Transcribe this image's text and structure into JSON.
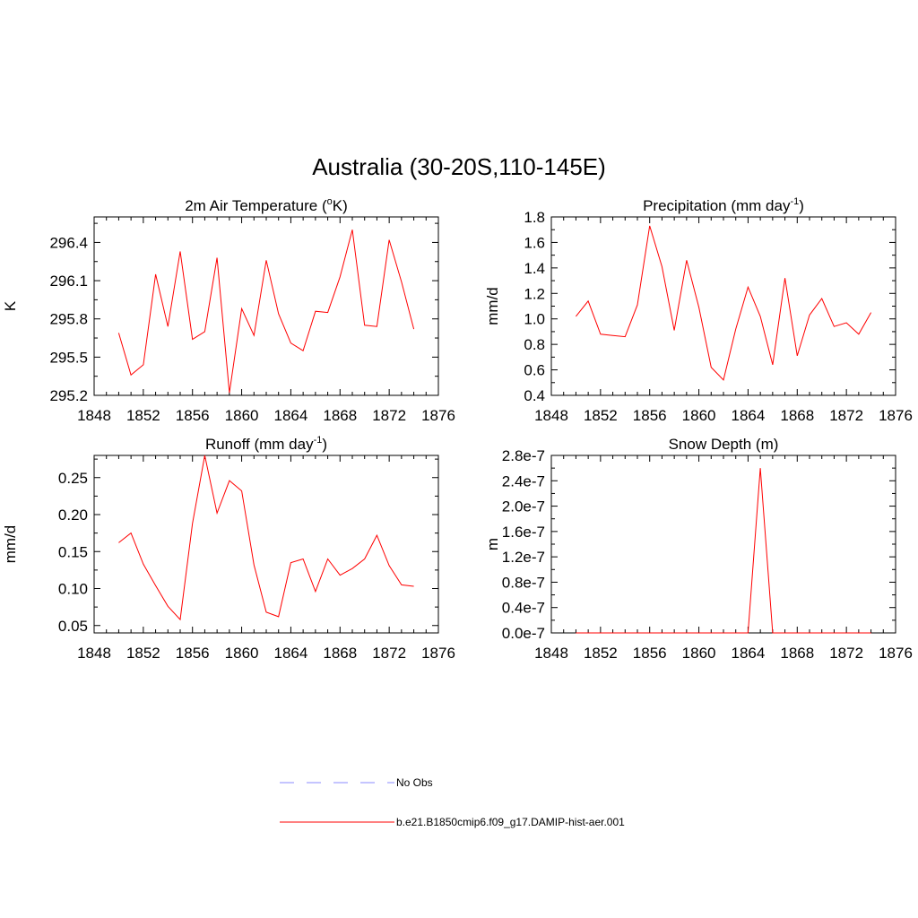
{
  "figure": {
    "title": "Australia (30-20S,110-145E)"
  },
  "legend": {
    "entries": [
      {
        "label": "No Obs",
        "color": "#8b8bff",
        "dash": true
      },
      {
        "label": "b.e21.B1850cmip6.f09_g17.DAMIP-hist-aer.001",
        "color": "#ff0000",
        "dash": false
      }
    ]
  },
  "chart_data": [
    {
      "type": "line",
      "title": "2m Air Temperature (",
      "title_sup": "o",
      "title_after": "K)",
      "ylabel": "K",
      "xlim": [
        1848,
        1876
      ],
      "ylim": [
        295.2,
        296.6
      ],
      "xticks": [
        1848,
        1852,
        1856,
        1860,
        1864,
        1868,
        1872,
        1876
      ],
      "xtick_labels": [
        "1848",
        "1852",
        "1856",
        "1860",
        "1864",
        "1868",
        "1872",
        "1876"
      ],
      "yticks": [
        295.2,
        295.5,
        295.8,
        296.1,
        296.4
      ],
      "ytick_labels": [
        "295.2",
        "295.5",
        "295.8",
        "296.1",
        "296.4"
      ],
      "series": [
        {
          "color": "#ff0000",
          "x": [
            1850,
            1851,
            1852,
            1853,
            1854,
            1855,
            1856,
            1857,
            1858,
            1859,
            1860,
            1861,
            1862,
            1863,
            1864,
            1865,
            1866,
            1867,
            1868,
            1869,
            1870,
            1871,
            1872,
            1873,
            1874
          ],
          "y": [
            295.69,
            295.36,
            295.44,
            296.15,
            295.74,
            296.33,
            295.64,
            295.7,
            296.28,
            295.22,
            295.88,
            295.67,
            296.26,
            295.84,
            295.61,
            295.55,
            295.86,
            295.85,
            296.13,
            296.5,
            295.75,
            295.74,
            296.42,
            296.09,
            295.72
          ]
        }
      ]
    },
    {
      "type": "line",
      "title": "Precipitation (mm day",
      "title_sup": "-1",
      "title_after": ")",
      "ylabel": "mm/d",
      "xlim": [
        1848,
        1876
      ],
      "ylim": [
        0.4,
        1.8
      ],
      "xticks": [
        1848,
        1852,
        1856,
        1860,
        1864,
        1868,
        1872,
        1876
      ],
      "xtick_labels": [
        "1848",
        "1852",
        "1856",
        "1860",
        "1864",
        "1868",
        "1872",
        "1876"
      ],
      "yticks": [
        0.4,
        0.6,
        0.8,
        1.0,
        1.2,
        1.4,
        1.6,
        1.8
      ],
      "ytick_labels": [
        "0.4",
        "0.6",
        "0.8",
        "1.0",
        "1.2",
        "1.4",
        "1.6",
        "1.8"
      ],
      "series": [
        {
          "color": "#ff0000",
          "x": [
            1850,
            1851,
            1852,
            1853,
            1854,
            1855,
            1856,
            1857,
            1858,
            1859,
            1860,
            1861,
            1862,
            1863,
            1864,
            1865,
            1866,
            1867,
            1868,
            1869,
            1870,
            1871,
            1872,
            1873,
            1874
          ],
          "y": [
            1.02,
            1.14,
            0.88,
            0.87,
            0.86,
            1.11,
            1.73,
            1.41,
            0.91,
            1.46,
            1.09,
            0.62,
            0.52,
            0.92,
            1.25,
            1.02,
            0.64,
            1.32,
            0.71,
            1.03,
            1.16,
            0.94,
            0.97,
            0.88,
            1.05
          ]
        }
      ]
    },
    {
      "type": "line",
      "title": "Runoff (mm day",
      "title_sup": "-1",
      "title_after": ")",
      "ylabel": "mm/d",
      "xlim": [
        1848,
        1876
      ],
      "ylim": [
        0.04,
        0.28
      ],
      "xticks": [
        1848,
        1852,
        1856,
        1860,
        1864,
        1868,
        1872,
        1876
      ],
      "xtick_labels": [
        "1848",
        "1852",
        "1856",
        "1860",
        "1864",
        "1868",
        "1872",
        "1876"
      ],
      "yticks": [
        0.05,
        0.1,
        0.15,
        0.2,
        0.25
      ],
      "ytick_labels": [
        "0.05",
        "0.10",
        "0.15",
        "0.20",
        "0.25"
      ],
      "series": [
        {
          "color": "#ff0000",
          "x": [
            1850,
            1851,
            1852,
            1853,
            1854,
            1855,
            1856,
            1857,
            1858,
            1859,
            1860,
            1861,
            1862,
            1863,
            1864,
            1865,
            1866,
            1867,
            1868,
            1869,
            1870,
            1871,
            1872,
            1873,
            1874
          ],
          "y": [
            0.162,
            0.175,
            0.133,
            0.104,
            0.076,
            0.058,
            0.188,
            0.28,
            0.202,
            0.246,
            0.232,
            0.132,
            0.068,
            0.062,
            0.135,
            0.14,
            0.096,
            0.14,
            0.118,
            0.127,
            0.14,
            0.172,
            0.131,
            0.105,
            0.103
          ]
        }
      ]
    },
    {
      "type": "line",
      "title": "Snow Depth (m)",
      "title_sup": "",
      "title_after": "",
      "ylabel": "m",
      "xlim": [
        1848,
        1876
      ],
      "ylim": [
        0,
        2.8e-07
      ],
      "xticks": [
        1848,
        1852,
        1856,
        1860,
        1864,
        1868,
        1872,
        1876
      ],
      "xtick_labels": [
        "1848",
        "1852",
        "1856",
        "1860",
        "1864",
        "1868",
        "1872",
        "1876"
      ],
      "yticks": [
        0,
        4e-08,
        8e-08,
        1.2e-07,
        1.6e-07,
        2e-07,
        2.4e-07,
        2.8e-07
      ],
      "ytick_labels": [
        "0.0e-7",
        "0.4e-7",
        "0.8e-7",
        "1.2e-7",
        "1.6e-7",
        "2.0e-7",
        "2.4e-7",
        "2.8e-7"
      ],
      "series": [
        {
          "color": "#ff0000",
          "x": [
            1850,
            1851,
            1852,
            1853,
            1854,
            1855,
            1856,
            1857,
            1858,
            1859,
            1860,
            1861,
            1862,
            1863,
            1864,
            1865,
            1866,
            1867,
            1868,
            1869,
            1870,
            1871,
            1872,
            1873,
            1874
          ],
          "y": [
            0,
            0,
            0,
            0,
            0,
            0,
            0,
            0,
            0,
            0,
            0,
            0,
            0,
            0,
            0,
            2.6e-07,
            0,
            0,
            0,
            0,
            0,
            0,
            0,
            0,
            0
          ]
        }
      ]
    }
  ]
}
